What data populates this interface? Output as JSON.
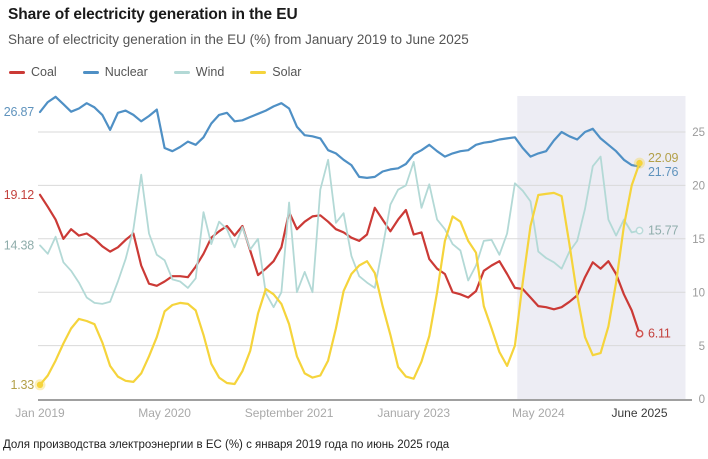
{
  "header": {
    "title": "Share of electricity generation in the EU",
    "subtitle": "Share of electricity generation in the EU (%) from January 2019 to June 2025"
  },
  "footer": {
    "note": "Доля производства электроэнергии в ЕС (%) с января 2019 года по июнь 2025 года"
  },
  "chart_data": {
    "type": "line",
    "title": "Share of electricity generation in the EU",
    "xlabel": "",
    "ylabel": "%",
    "x_unit": "month",
    "x_start": "2019-01",
    "x_end": "2025-06",
    "n_points": 78,
    "ylim": [
      0,
      28.5
    ],
    "grid": true,
    "legend_position": "top-left",
    "axis": {
      "y_ticks": [
        0,
        5,
        10,
        15,
        20,
        25
      ],
      "y_tick_side": "right",
      "x_ticks": [
        {
          "label": "Jan 2019",
          "month": 0,
          "emphasis": false
        },
        {
          "label": "May 2020",
          "month": 16,
          "emphasis": false
        },
        {
          "label": "September 2021",
          "month": 32,
          "emphasis": false
        },
        {
          "label": "January 2023",
          "month": 48,
          "emphasis": false
        },
        {
          "label": "May 2024",
          "month": 64,
          "emphasis": false
        },
        {
          "label": "June 2025",
          "month": 77,
          "emphasis": true
        }
      ]
    },
    "highlight_region": {
      "from_month": 61.3,
      "to_month": 77,
      "color": "#ededf4"
    },
    "series": [
      {
        "name": "Coal",
        "color": "#cb3a36",
        "label_color": "#c4423e",
        "line_width": 2.2,
        "start_label": "19.12",
        "end_label": "6.11",
        "start_marker": "none",
        "end_marker": "ring",
        "values": [
          19.12,
          18.0,
          16.8,
          15.0,
          15.9,
          15.3,
          15.5,
          15.0,
          14.3,
          13.8,
          14.2,
          14.9,
          15.5,
          12.5,
          10.8,
          10.6,
          11.0,
          11.5,
          11.5,
          11.4,
          12.4,
          13.6,
          15.1,
          15.7,
          16.2,
          15.3,
          16.2,
          13.9,
          11.6,
          12.2,
          12.9,
          14.2,
          17.5,
          15.9,
          16.6,
          17.1,
          17.2,
          16.6,
          15.9,
          15.6,
          15.1,
          14.8,
          15.4,
          17.9,
          16.8,
          15.7,
          16.8,
          17.7,
          15.4,
          15.6,
          13.1,
          12.2,
          11.7,
          10.0,
          9.8,
          9.5,
          10.1,
          12.0,
          12.5,
          12.9,
          11.7,
          10.4,
          10.3,
          9.5,
          8.7,
          8.6,
          8.4,
          8.6,
          9.1,
          9.7,
          11.4,
          12.8,
          12.2,
          12.9,
          11.7,
          9.8,
          8.3,
          6.11
        ]
      },
      {
        "name": "Nuclear",
        "color": "#4f90c5",
        "label_color": "#5f93bd",
        "line_width": 2.2,
        "start_label": "26.87",
        "end_label": "21.76",
        "start_marker": "none",
        "end_marker": "none",
        "values": [
          26.87,
          27.8,
          28.3,
          27.6,
          26.9,
          27.2,
          27.7,
          27.3,
          26.6,
          25.2,
          26.8,
          27.0,
          26.6,
          26.0,
          26.5,
          27.1,
          23.5,
          23.2,
          23.6,
          24.1,
          23.8,
          24.5,
          25.8,
          26.6,
          26.8,
          26.0,
          26.1,
          26.4,
          26.7,
          27.0,
          27.4,
          27.7,
          27.2,
          25.5,
          24.7,
          24.6,
          24.4,
          23.3,
          23.0,
          22.4,
          21.9,
          20.8,
          20.7,
          20.8,
          21.3,
          21.5,
          21.6,
          22.0,
          22.9,
          23.3,
          23.8,
          23.2,
          22.7,
          23.0,
          23.2,
          23.3,
          23.8,
          24.0,
          24.1,
          24.3,
          24.4,
          24.5,
          23.5,
          22.7,
          23.0,
          23.2,
          24.2,
          25.0,
          24.6,
          24.3,
          25.0,
          25.3,
          24.4,
          23.8,
          23.2,
          22.4,
          21.9,
          21.76
        ]
      },
      {
        "name": "Wind",
        "color": "#b3d9d6",
        "label_color": "#8fadab",
        "line_width": 1.8,
        "start_label": "14.38",
        "end_label": "15.77",
        "start_marker": "none",
        "end_marker": "ring",
        "values": [
          14.38,
          13.6,
          15.2,
          12.8,
          12.0,
          10.9,
          9.5,
          9.0,
          8.9,
          9.1,
          11.0,
          13.1,
          15.9,
          21.0,
          15.5,
          13.5,
          13.0,
          11.2,
          11.0,
          10.4,
          11.3,
          17.5,
          14.5,
          16.6,
          15.9,
          14.2,
          16.1,
          14.0,
          15.0,
          9.9,
          8.6,
          10.0,
          18.4,
          10.0,
          11.9,
          10.0,
          19.6,
          22.4,
          16.5,
          17.4,
          13.4,
          11.5,
          10.9,
          10.4,
          14.2,
          18.2,
          19.6,
          20.0,
          22.2,
          17.9,
          20.1,
          16.8,
          15.9,
          14.5,
          13.9,
          11.1,
          12.5,
          14.8,
          14.9,
          13.5,
          15.5,
          20.2,
          19.5,
          18.5,
          13.8,
          13.2,
          12.8,
          12.2,
          13.8,
          14.8,
          17.8,
          21.8,
          22.7,
          16.8,
          15.3,
          16.8,
          15.6,
          15.77
        ]
      },
      {
        "name": "Solar",
        "color": "#f5d43c",
        "label_color": "#b3a049",
        "line_width": 2.2,
        "start_label": "1.33",
        "end_label": "22.09",
        "start_marker": "dot",
        "end_marker": "dot",
        "values": [
          1.33,
          2.2,
          3.6,
          5.2,
          6.6,
          7.5,
          7.3,
          7.0,
          5.3,
          3.1,
          2.1,
          1.7,
          1.6,
          2.4,
          4.0,
          5.8,
          8.2,
          8.8,
          9.0,
          8.9,
          8.3,
          6.0,
          3.3,
          2.0,
          1.5,
          1.4,
          2.6,
          4.5,
          8.0,
          10.3,
          9.8,
          8.9,
          7.0,
          4.0,
          2.4,
          2.0,
          2.2,
          3.6,
          6.6,
          10.1,
          11.7,
          12.5,
          12.9,
          11.8,
          8.7,
          6.0,
          3.0,
          2.1,
          1.9,
          3.5,
          5.9,
          10.0,
          14.8,
          17.1,
          16.6,
          14.8,
          13.7,
          8.7,
          6.6,
          4.4,
          3.1,
          5.0,
          10.9,
          16.2,
          19.1,
          19.2,
          19.3,
          19.0,
          14.5,
          9.7,
          5.8,
          4.1,
          4.3,
          6.8,
          10.9,
          16.2,
          20.0,
          22.09
        ]
      }
    ]
  }
}
